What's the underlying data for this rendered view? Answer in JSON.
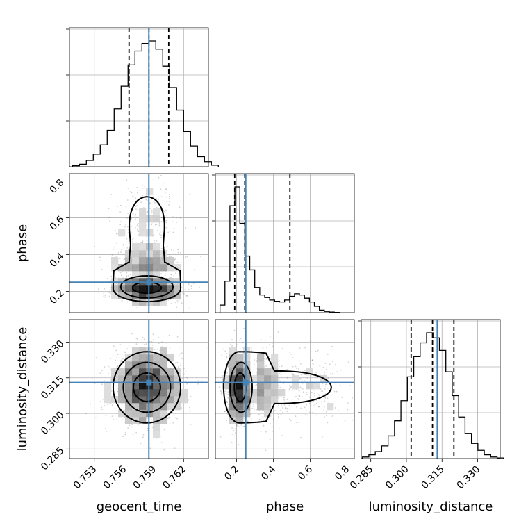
{
  "chart_data": {
    "type": "corner",
    "parameters": [
      {
        "name": "geocent_time",
        "label": "geocent_time",
        "range": [
          0.7505,
          0.7645
        ],
        "ticks": [
          0.753,
          0.756,
          0.759,
          0.762
        ],
        "tick_labels": [
          "0.753",
          "0.756",
          "0.759",
          "0.762"
        ],
        "truth": 0.7585,
        "quantiles": [
          0.7565,
          0.7585,
          0.7605
        ],
        "histogram": {
          "start": 0.7508,
          "bin_width": 0.0007,
          "counts": [
            0.008,
            0.02,
            0.05,
            0.1,
            0.175,
            0.29,
            0.46,
            0.64,
            0.81,
            0.92,
            0.98,
            1.0,
            0.935,
            0.8,
            0.63,
            0.45,
            0.28,
            0.165,
            0.08,
            0.04,
            0.012
          ]
        },
        "mean": 0.7583,
        "sd": 0.0017
      },
      {
        "name": "phase",
        "label": "phase",
        "range": [
          0.085,
          0.84
        ],
        "ticks": [
          0.2,
          0.4,
          0.6,
          0.8
        ],
        "tick_labels": [
          "0.2",
          "0.4",
          "0.6",
          "0.8"
        ],
        "truth": 0.25,
        "quantiles": [
          0.19,
          0.245,
          0.49
        ],
        "histogram": {
          "start": 0.11,
          "bin_width": 0.027,
          "counts": [
            0.06,
            0.25,
            0.85,
            1.0,
            0.71,
            0.45,
            0.34,
            0.2,
            0.14,
            0.12,
            0.1,
            0.09,
            0.085,
            0.1,
            0.13,
            0.15,
            0.14,
            0.115,
            0.085,
            0.05,
            0.02,
            0.01,
            0.005,
            0.002
          ]
        }
      },
      {
        "name": "luminosity_distance",
        "label": "luminosity_distance",
        "range": [
          0.281,
          0.3395
        ],
        "ticks": [
          0.285,
          0.3,
          0.315,
          0.33
        ],
        "tick_labels": [
          "0.285",
          "0.300",
          "0.315",
          "0.330"
        ],
        "truth": 0.313,
        "quantiles": [
          0.302,
          0.311,
          0.32
        ],
        "histogram": {
          "start": 0.2815,
          "bin_width": 0.0027,
          "counts": [
            0.012,
            0.03,
            0.055,
            0.1,
            0.18,
            0.3,
            0.46,
            0.65,
            0.81,
            0.92,
            1.0,
            0.96,
            0.86,
            0.69,
            0.5,
            0.33,
            0.2,
            0.12,
            0.065,
            0.03,
            0.012,
            0.005
          ]
        },
        "mean": 0.311,
        "sd": 0.0075
      }
    ],
    "truth_color": "#4682b4",
    "line_color": "#000000",
    "grid": true,
    "density_levels": 3
  }
}
